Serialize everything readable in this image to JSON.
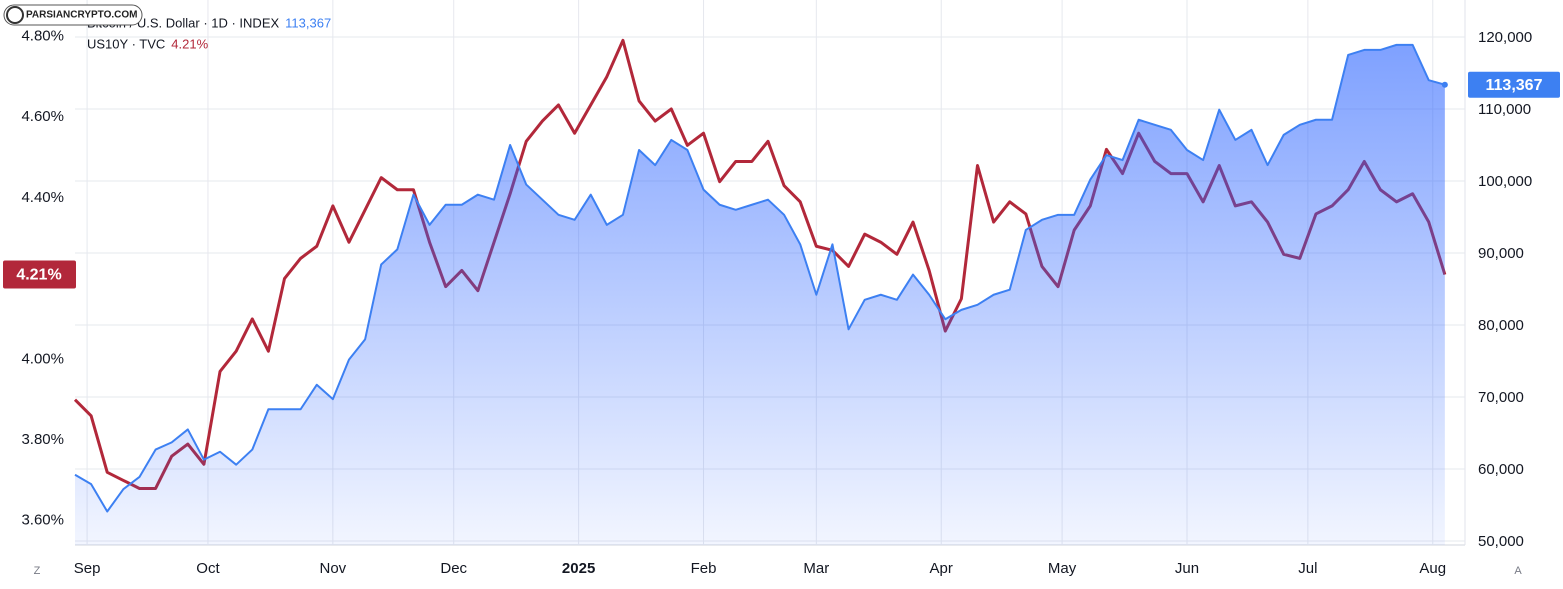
{
  "watermark": "PARSIANCRYPTO.COM",
  "controls": {
    "left": "Z",
    "right": "A"
  },
  "chart_data": {
    "type": "line",
    "x": [
      0,
      4,
      8,
      12,
      16,
      20,
      24,
      28,
      32,
      36,
      40,
      44,
      48,
      52,
      56,
      60,
      64,
      68,
      72,
      76,
      80,
      84,
      88,
      92,
      96,
      100,
      104,
      108,
      112,
      116,
      120,
      124,
      128,
      132,
      136,
      140,
      144,
      148,
      152,
      156,
      160,
      164,
      168,
      172,
      176,
      180,
      184,
      188,
      192,
      196,
      200,
      204,
      208,
      212,
      216,
      220,
      224,
      228,
      232,
      236,
      240,
      244,
      248,
      252,
      256,
      260,
      264,
      268,
      272,
      276,
      280,
      284,
      288,
      292,
      296,
      300,
      304,
      308,
      312,
      316,
      320,
      324,
      328,
      332,
      336,
      340
    ],
    "xlim": [
      0,
      345
    ],
    "xticks": [
      {
        "value": 3,
        "label": "Sep"
      },
      {
        "value": 33,
        "label": "Oct"
      },
      {
        "value": 64,
        "label": "Nov"
      },
      {
        "value": 94,
        "label": "Dec"
      },
      {
        "value": 125,
        "label": "2025"
      },
      {
        "value": 156,
        "label": "Feb"
      },
      {
        "value": 184,
        "label": "Mar"
      },
      {
        "value": 215,
        "label": "Apr"
      },
      {
        "value": 245,
        "label": "May"
      },
      {
        "value": 276,
        "label": "Jun"
      },
      {
        "value": 306,
        "label": "Jul"
      },
      {
        "value": 337,
        "label": "Aug"
      }
    ],
    "ylim": [
      3.54,
      4.89
    ],
    "yticks": [
      {
        "value": 3.6,
        "label": "3.60%"
      },
      {
        "value": 3.8,
        "label": "3.80%"
      },
      {
        "value": 4.0,
        "label": "4.00%"
      },
      {
        "value": 4.4,
        "label": "4.40%"
      },
      {
        "value": 4.6,
        "label": "4.60%"
      },
      {
        "value": 4.8,
        "label": "4.80%"
      }
    ],
    "y2lim": [
      49450,
      125130
    ],
    "y2ticks": [
      {
        "value": 50000,
        "label": "50,000"
      },
      {
        "value": 60000,
        "label": "60,000"
      },
      {
        "value": 70000,
        "label": "70,000"
      },
      {
        "value": 80000,
        "label": "80,000"
      },
      {
        "value": 90000,
        "label": "90,000"
      },
      {
        "value": 100000,
        "label": "100,000"
      },
      {
        "value": 110000,
        "label": "110,000"
      },
      {
        "value": 120000,
        "label": "120,000"
      }
    ],
    "grid": true,
    "series": [
      {
        "name": "Bitcoin / U.S. Dollar · 1D · INDEX",
        "type": "area",
        "color": "#3d80f2",
        "axis": "y2",
        "last_value_label": "113,367",
        "values": [
          59200,
          57900,
          54100,
          57200,
          58900,
          62700,
          63700,
          65500,
          61300,
          62400,
          60600,
          62700,
          68300,
          68300,
          68300,
          71700,
          69700,
          75200,
          78000,
          88400,
          90500,
          98100,
          93900,
          96700,
          96700,
          98100,
          97400,
          105000,
          99500,
          97400,
          95300,
          94600,
          98100,
          93900,
          95300,
          104300,
          102200,
          105700,
          104300,
          98800,
          96700,
          96000,
          96700,
          97400,
          95300,
          91200,
          84200,
          91200,
          79400,
          83500,
          84200,
          83500,
          87000,
          84200,
          80800,
          82100,
          82800,
          84200,
          84900,
          93200,
          94600,
          95300,
          95300,
          100200,
          103600,
          102900,
          108500,
          107800,
          107100,
          104300,
          102900,
          109900,
          105700,
          107100,
          102200,
          106400,
          107800,
          108500,
          108500,
          117500,
          118200,
          118200,
          118900,
          118900,
          114000,
          113367
        ]
      },
      {
        "name": "US10Y · TVC",
        "type": "line",
        "color": "#b2283a",
        "axis": "y",
        "last_value_label": "4.21%",
        "values": [
          3.9,
          3.86,
          3.72,
          3.7,
          3.68,
          3.68,
          3.76,
          3.79,
          3.74,
          3.97,
          4.02,
          4.1,
          4.02,
          4.2,
          4.25,
          4.28,
          4.38,
          4.29,
          4.37,
          4.45,
          4.42,
          4.42,
          4.29,
          4.18,
          4.22,
          4.17,
          4.29,
          4.41,
          4.54,
          4.59,
          4.63,
          4.56,
          4.63,
          4.7,
          4.79,
          4.64,
          4.59,
          4.62,
          4.53,
          4.56,
          4.44,
          4.49,
          4.49,
          4.54,
          4.43,
          4.39,
          4.28,
          4.27,
          4.23,
          4.31,
          4.29,
          4.26,
          4.34,
          4.22,
          4.07,
          4.15,
          4.48,
          4.34,
          4.39,
          4.36,
          4.23,
          4.18,
          4.32,
          4.38,
          4.52,
          4.46,
          4.56,
          4.49,
          4.46,
          4.46,
          4.39,
          4.48,
          4.38,
          4.39,
          4.34,
          4.26,
          4.25,
          4.36,
          4.38,
          4.42,
          4.49,
          4.42,
          4.39,
          4.41,
          4.34,
          4.21
        ]
      }
    ]
  }
}
